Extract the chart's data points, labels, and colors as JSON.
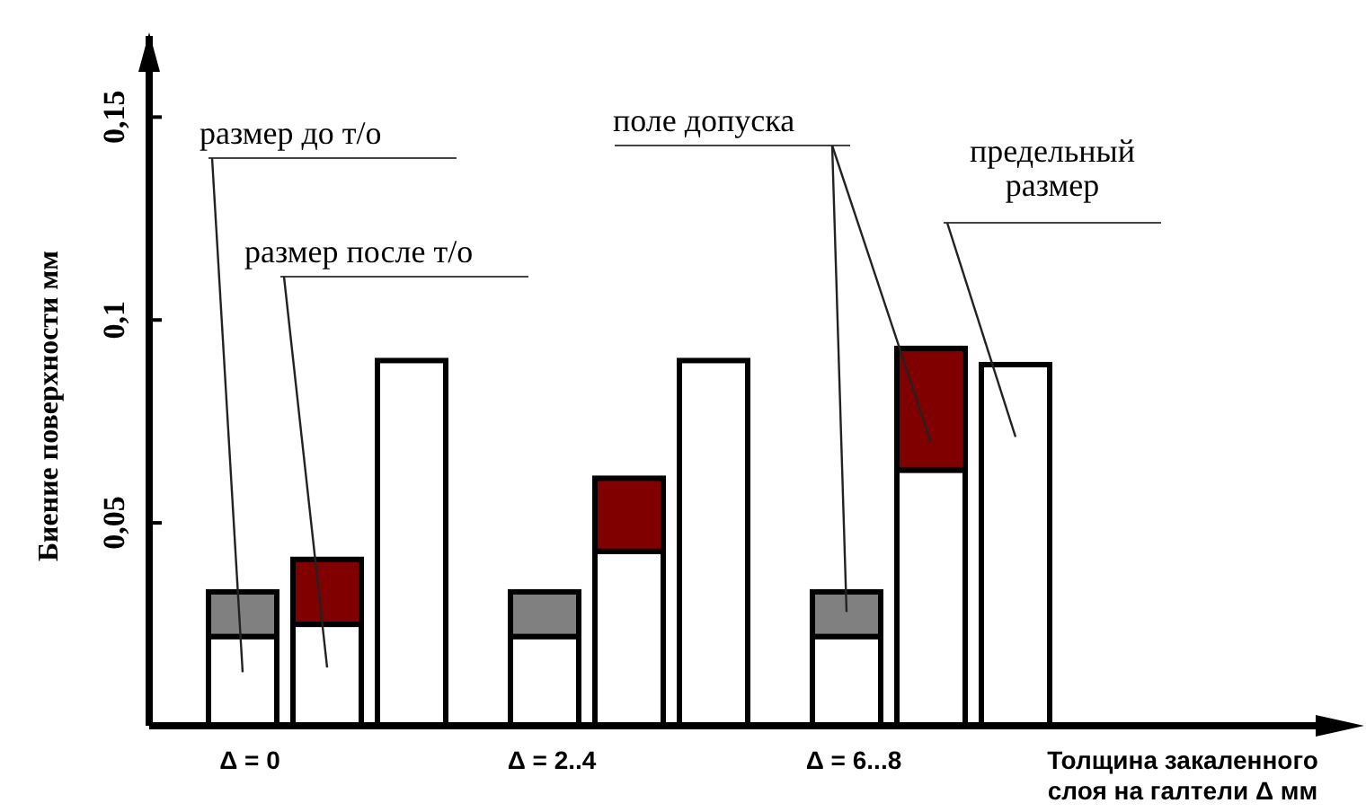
{
  "chart_data": {
    "type": "bar",
    "stacked": true,
    "ylabel": "Биение поверхности мм",
    "xlabel": "Толщина закаленного слоя на галтели Δ  мм",
    "categories": [
      "Δ = 0",
      null,
      null,
      "Δ = 2..4",
      null,
      null,
      "Δ = 6...8",
      null,
      null
    ],
    "series": [
      {
        "colors": [
          "#ffffff",
          "#ffffff",
          "#ffffff",
          "#ffffff",
          "#ffffff",
          "#ffffff",
          "#ffffff",
          "#ffffff",
          "#ffffff"
        ],
        "values": [
          0.022,
          0.025,
          0.09,
          0.022,
          0.043,
          0.09,
          0.022,
          0.063,
          0.089
        ]
      },
      {
        "colors": [
          "#808080",
          "#800000",
          null,
          "#808080",
          "#800000",
          null,
          "#808080",
          "#800000",
          null
        ],
        "values": [
          0.011,
          0.016,
          null,
          0.011,
          0.018,
          null,
          0.011,
          0.03,
          null
        ]
      }
    ],
    "ylim": [
      0,
      0.17
    ],
    "yticks": [
      {
        "value": 0.05,
        "label": "0,05"
      },
      {
        "value": 0.1,
        "label": "0,1"
      },
      {
        "value": 0.15,
        "label": "0,15"
      }
    ],
    "grid": false,
    "annotations": [
      "размер до т/о",
      "размер после т/о",
      "поле допуска",
      "предельный размер"
    ]
  }
}
